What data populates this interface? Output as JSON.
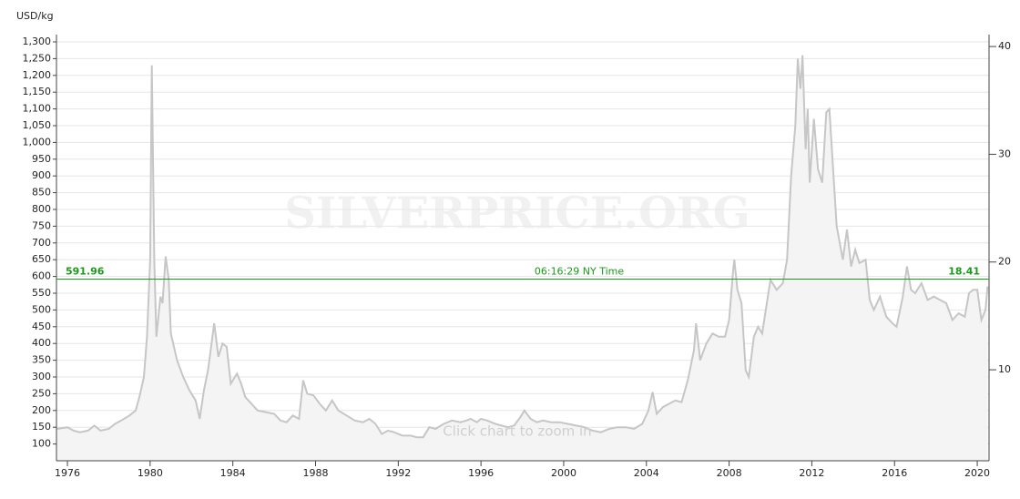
{
  "chart_data": {
    "type": "line",
    "y_label": "USD/kg",
    "watermark": "SILVERPRICE.ORG",
    "hint": "Click chart to zoom in",
    "color": "#c6c6c6",
    "fill": "#f4f4f4",
    "grid": true,
    "xlim": [
      1975.47,
      2020.57
    ],
    "xticks": [
      1976,
      1980,
      1984,
      1988,
      1992,
      1996,
      2000,
      2004,
      2008,
      2012,
      2016,
      2020
    ],
    "ylim": [
      50,
      1300
    ],
    "yticks": [
      100,
      150,
      200,
      250,
      300,
      350,
      400,
      450,
      500,
      550,
      600,
      650,
      700,
      750,
      800,
      850,
      900,
      950,
      {
        "value": 1000,
        "label": "1,000"
      },
      {
        "value": 1050,
        "label": "1,050"
      },
      {
        "value": 1100,
        "label": "1,100"
      },
      {
        "value": 1150,
        "label": "1,150"
      },
      {
        "value": 1200,
        "label": "1,200"
      },
      {
        "value": 1250,
        "label": "1,250"
      },
      {
        "value": 1300,
        "label": "1,300"
      }
    ],
    "y2lim": [
      1.555,
      40.43
    ],
    "y2ticks": [
      10,
      20,
      30,
      40
    ],
    "current": {
      "value": 591.96,
      "value_y2": 18.41,
      "time": "06:16:29 NY Time",
      "color": "#1a9a1a"
    },
    "x": [
      1975.5,
      1976,
      1976.3,
      1976.6,
      1977,
      1977.3,
      1977.6,
      1978,
      1978.3,
      1978.6,
      1979,
      1979.3,
      1979.5,
      1979.7,
      1979.85,
      1980.0,
      1980.08,
      1980.2,
      1980.3,
      1980.5,
      1980.6,
      1980.75,
      1980.9,
      1981,
      1981.3,
      1981.6,
      1981.9,
      1982.2,
      1982.4,
      1982.6,
      1982.8,
      1983.1,
      1983.3,
      1983.5,
      1983.7,
      1983.9,
      1984.2,
      1984.4,
      1984.6,
      1984.9,
      1985.2,
      1985.6,
      1986,
      1986.3,
      1986.6,
      1986.9,
      1987.2,
      1987.4,
      1987.6,
      1987.9,
      1988.2,
      1988.5,
      1988.8,
      1989.1,
      1989.5,
      1989.9,
      1990.3,
      1990.6,
      1990.9,
      1991.2,
      1991.5,
      1991.8,
      1992.2,
      1992.6,
      1992.9,
      1993.2,
      1993.5,
      1993.8,
      1994.2,
      1994.6,
      1995.0,
      1995.3,
      1995.5,
      1995.8,
      1996.0,
      1996.3,
      1996.7,
      1997.0,
      1997.3,
      1997.6,
      1997.9,
      1998.1,
      1998.4,
      1998.7,
      1999,
      1999.4,
      1999.8,
      2000.2,
      2000.6,
      2001,
      2001.4,
      2001.8,
      2002.2,
      2002.6,
      2003,
      2003.4,
      2003.8,
      2004.1,
      2004.3,
      2004.5,
      2004.8,
      2005.1,
      2005.4,
      2005.7,
      2006,
      2006.3,
      2006.4,
      2006.6,
      2006.9,
      2007.2,
      2007.5,
      2007.8,
      2008.0,
      2008.2,
      2008.25,
      2008.4,
      2008.6,
      2008.8,
      2008.95,
      2009.2,
      2009.4,
      2009.6,
      2009.9,
      2010.0,
      2010.3,
      2010.6,
      2010.8,
      2011.0,
      2011.2,
      2011.32,
      2011.45,
      2011.55,
      2011.7,
      2011.8,
      2011.9,
      2012.1,
      2012.3,
      2012.5,
      2012.7,
      2012.85,
      2013,
      2013.2,
      2013.5,
      2013.7,
      2013.9,
      2014.1,
      2014.3,
      2014.6,
      2014.8,
      2015.0,
      2015.3,
      2015.6,
      2015.9,
      2016.1,
      2016.4,
      2016.6,
      2016.8,
      2017.0,
      2017.3,
      2017.6,
      2017.9,
      2018.2,
      2018.5,
      2018.8,
      2019.1,
      2019.4,
      2019.6,
      2019.8,
      2020.0,
      2020.2,
      2020.4,
      2020.5
    ],
    "values": [
      145,
      150,
      140,
      135,
      140,
      155,
      140,
      145,
      160,
      170,
      185,
      200,
      245,
      300,
      420,
      650,
      1230,
      650,
      420,
      540,
      520,
      660,
      590,
      430,
      350,
      300,
      260,
      230,
      175,
      260,
      320,
      460,
      360,
      400,
      390,
      280,
      310,
      280,
      240,
      220,
      200,
      195,
      190,
      170,
      165,
      185,
      175,
      290,
      250,
      245,
      220,
      200,
      230,
      200,
      185,
      170,
      165,
      175,
      160,
      130,
      140,
      135,
      125,
      125,
      120,
      120,
      150,
      145,
      160,
      170,
      165,
      170,
      175,
      165,
      175,
      170,
      160,
      155,
      150,
      155,
      180,
      200,
      175,
      165,
      170,
      165,
      165,
      160,
      155,
      150,
      140,
      135,
      145,
      150,
      150,
      145,
      160,
      200,
      255,
      190,
      210,
      220,
      230,
      225,
      290,
      380,
      460,
      350,
      400,
      430,
      420,
      420,
      470,
      620,
      650,
      560,
      520,
      320,
      300,
      420,
      450,
      430,
      550,
      590,
      560,
      580,
      650,
      900,
      1050,
      1250,
      1160,
      1260,
      980,
      1100,
      880,
      1070,
      920,
      880,
      1090,
      1100,
      950,
      750,
      650,
      740,
      630,
      680,
      640,
      650,
      530,
      500,
      540,
      480,
      460,
      450,
      540,
      630,
      560,
      550,
      580,
      530,
      540,
      530,
      520,
      470,
      490,
      480,
      550,
      560,
      560,
      470,
      500,
      570
    ]
  }
}
